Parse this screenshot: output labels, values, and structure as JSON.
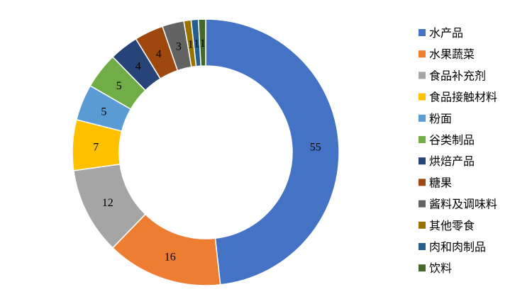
{
  "chart_data": {
    "type": "pie",
    "style": "donut",
    "legend_position": "right",
    "categories": [
      "水产品",
      "水果蔬菜",
      "食品补充剂",
      "食品接触材料",
      "粉面",
      "谷类制品",
      "烘焙产品",
      "糖果",
      "酱料及调味料",
      "其他零食",
      "肉和肉制品",
      "饮料"
    ],
    "values": [
      55,
      16,
      12,
      7,
      5,
      5,
      4,
      4,
      3,
      1,
      1,
      1
    ],
    "colors": [
      "#4472C4",
      "#ED7D31",
      "#A5A5A5",
      "#FFC000",
      "#5B9BD5",
      "#70AD47",
      "#264478",
      "#9E480E",
      "#636363",
      "#997300",
      "#255E91",
      "#43682B"
    ]
  }
}
